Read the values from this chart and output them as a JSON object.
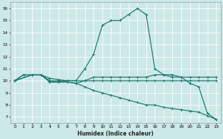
{
  "xlabel": "Humidex (Indice chaleur)",
  "bg_color": "#cce8e8",
  "grid_color": "#ffffff",
  "line_color": "#1a7a6e",
  "xlim": [
    -0.5,
    23.5
  ],
  "ylim": [
    6.5,
    16.5
  ],
  "xticks": [
    0,
    1,
    2,
    3,
    4,
    5,
    6,
    7,
    8,
    9,
    10,
    11,
    12,
    13,
    14,
    15,
    16,
    17,
    18,
    19,
    20,
    21,
    22,
    23
  ],
  "yticks": [
    7,
    8,
    9,
    10,
    11,
    12,
    13,
    14,
    15,
    16
  ],
  "line1_x": [
    0,
    1,
    2,
    3,
    4,
    5,
    6,
    7,
    8,
    9,
    10,
    11,
    12,
    13,
    14,
    15,
    16,
    17,
    18,
    19,
    20,
    21,
    22,
    23
  ],
  "line1_y": [
    10.0,
    10.5,
    10.5,
    10.5,
    10.2,
    10.1,
    10.0,
    10.0,
    10.0,
    10.0,
    10.0,
    10.0,
    10.0,
    10.0,
    10.0,
    10.0,
    10.0,
    10.0,
    10.0,
    10.0,
    10.0,
    10.0,
    10.0,
    10.0
  ],
  "line2_x": [
    0,
    1,
    2,
    3,
    4,
    5,
    6,
    7,
    8,
    9,
    10,
    11,
    12,
    13,
    14,
    15,
    16,
    17,
    18,
    19,
    20,
    21,
    22,
    23
  ],
  "line2_y": [
    10.0,
    10.5,
    10.5,
    10.5,
    9.9,
    9.9,
    9.9,
    9.8,
    10.0,
    10.3,
    10.3,
    10.3,
    10.3,
    10.3,
    10.3,
    10.3,
    10.5,
    10.5,
    10.3,
    10.3,
    10.3,
    10.3,
    10.3,
    10.3
  ],
  "line3_x": [
    0,
    2,
    3,
    4,
    5,
    6,
    7,
    8,
    9,
    10,
    11,
    12,
    13,
    14,
    15,
    16,
    17,
    18,
    19,
    20,
    21,
    22,
    23
  ],
  "line3_y": [
    10.0,
    10.5,
    10.5,
    10.0,
    10.0,
    10.0,
    10.0,
    11.0,
    12.2,
    14.6,
    15.0,
    15.0,
    15.5,
    16.0,
    15.5,
    11.0,
    10.5,
    10.5,
    10.3,
    9.8,
    9.5,
    7.3,
    6.8
  ],
  "line4_x": [
    0,
    2,
    3,
    4,
    5,
    6,
    7,
    8,
    9,
    10,
    11,
    12,
    13,
    14,
    15,
    16,
    17,
    18,
    19,
    20,
    21,
    22,
    23
  ],
  "line4_y": [
    10.0,
    10.5,
    10.5,
    9.9,
    9.9,
    9.9,
    9.8,
    9.5,
    9.2,
    9.0,
    8.8,
    8.6,
    8.4,
    8.2,
    8.0,
    8.0,
    7.8,
    7.7,
    7.6,
    7.5,
    7.4,
    7.1,
    6.8
  ]
}
